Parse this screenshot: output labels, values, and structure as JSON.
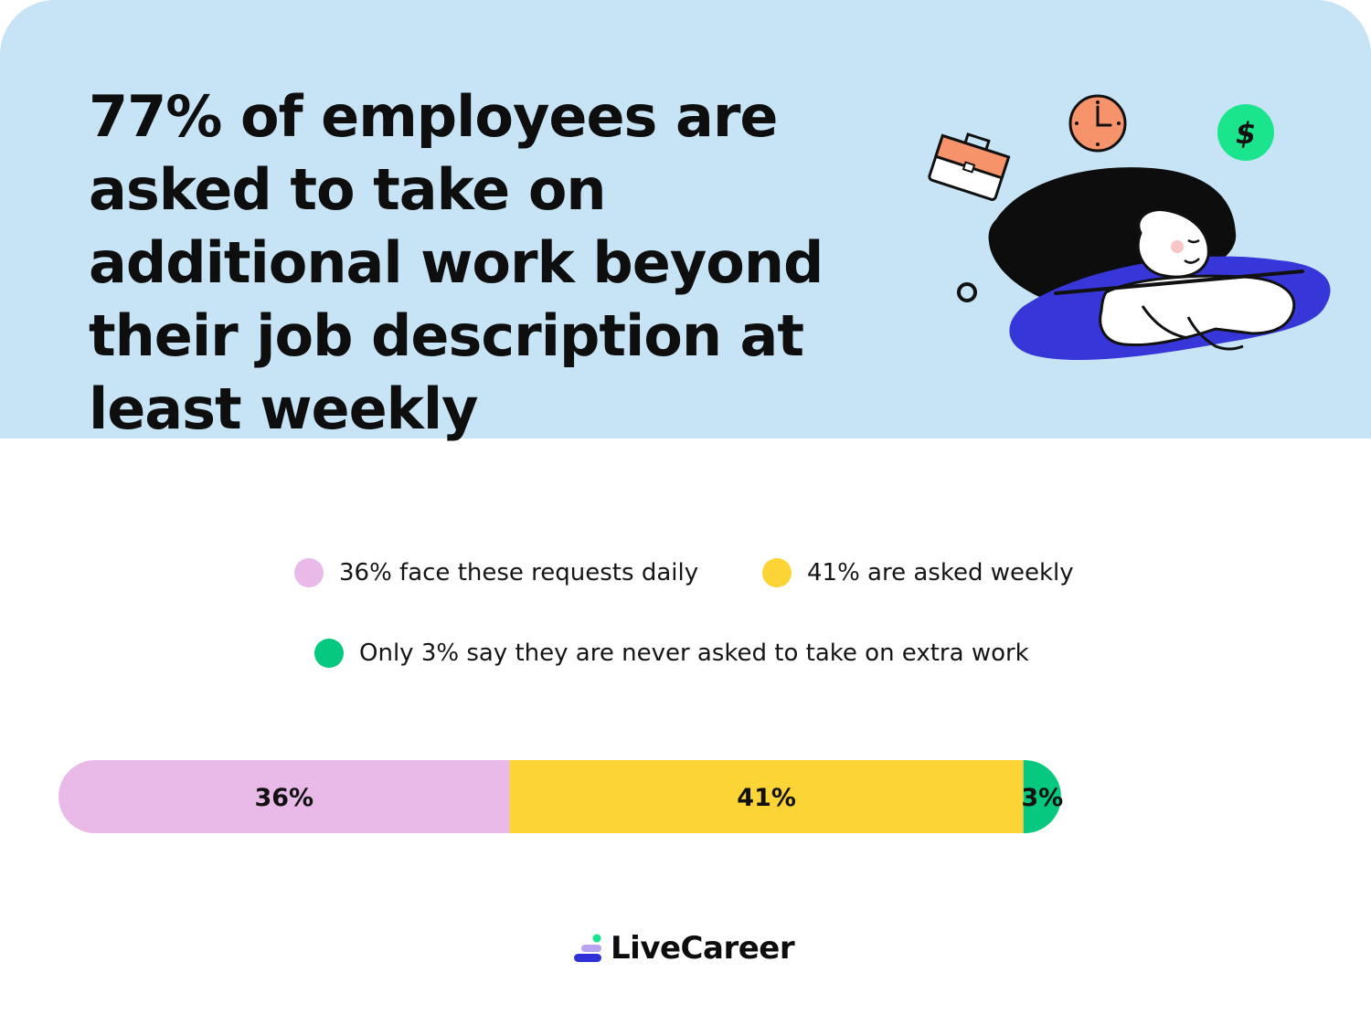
{
  "header": {
    "title": "77% of employees are asked to take on additional work beyond their job description at least weekly"
  },
  "legend": {
    "items": [
      {
        "label": "36% face these requests daily",
        "color": "#e9b9e8"
      },
      {
        "label": "41% are asked weekly",
        "color": "#fdd435"
      },
      {
        "label": "Only 3% say they are never asked to take on extra work",
        "color": "#06c87f"
      }
    ]
  },
  "chart_data": {
    "type": "bar",
    "orientation": "horizontal-stacked",
    "categories": [
      ""
    ],
    "series": [
      {
        "values": [
          36
        ],
        "label": "36%",
        "color": "#e9b9e8"
      },
      {
        "values": [
          41
        ],
        "label": "41%",
        "color": "#fdd435"
      },
      {
        "values": [
          3
        ],
        "label": "3%",
        "color": "#06c87f"
      }
    ],
    "title": "",
    "xlabel": "",
    "ylabel": "",
    "grid": false
  },
  "brand": {
    "name": "LiveCareer",
    "logo_icon": "livecareer-logo-icon",
    "accent": "#3030d9"
  },
  "illustration": {
    "icons": [
      "briefcase-icon",
      "clock-icon",
      "dollar-icon",
      "tired-woman-illustration"
    ]
  }
}
